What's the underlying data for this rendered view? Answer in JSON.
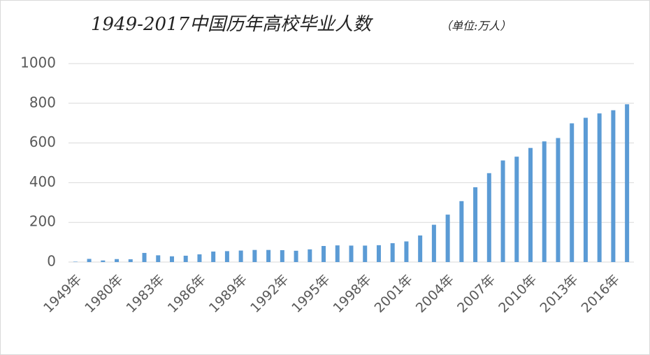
{
  "chart_data": {
    "type": "bar",
    "title": "1949-2017中国历年高校毕业人数",
    "subtitle": "（单位:万人）",
    "categories": [
      "1949年",
      null,
      null,
      "1980年",
      null,
      null,
      "1983年",
      null,
      null,
      "1986年",
      null,
      null,
      "1989年",
      null,
      null,
      "1992年",
      null,
      null,
      "1995年",
      null,
      null,
      "1998年",
      null,
      null,
      "2001年",
      null,
      null,
      "2004年",
      null,
      null,
      "2007年",
      null,
      null,
      "2010年",
      null,
      null,
      "2013年",
      null,
      null,
      "2016年",
      null
    ],
    "values": [
      2,
      16,
      8,
      15,
      14,
      46,
      34,
      29,
      32,
      39,
      53,
      55,
      58,
      61,
      61,
      60,
      57,
      64,
      81,
      84,
      83,
      83,
      85,
      95,
      104,
      134,
      188,
      239,
      307,
      377,
      448,
      512,
      531,
      575,
      608,
      625,
      699,
      727,
      749,
      765,
      795
    ],
    "color": "#5b9bd5",
    "ylim": [
      0,
      1000
    ],
    "yticks": [
      0,
      200,
      400,
      600,
      800,
      1000
    ],
    "grid": true
  }
}
